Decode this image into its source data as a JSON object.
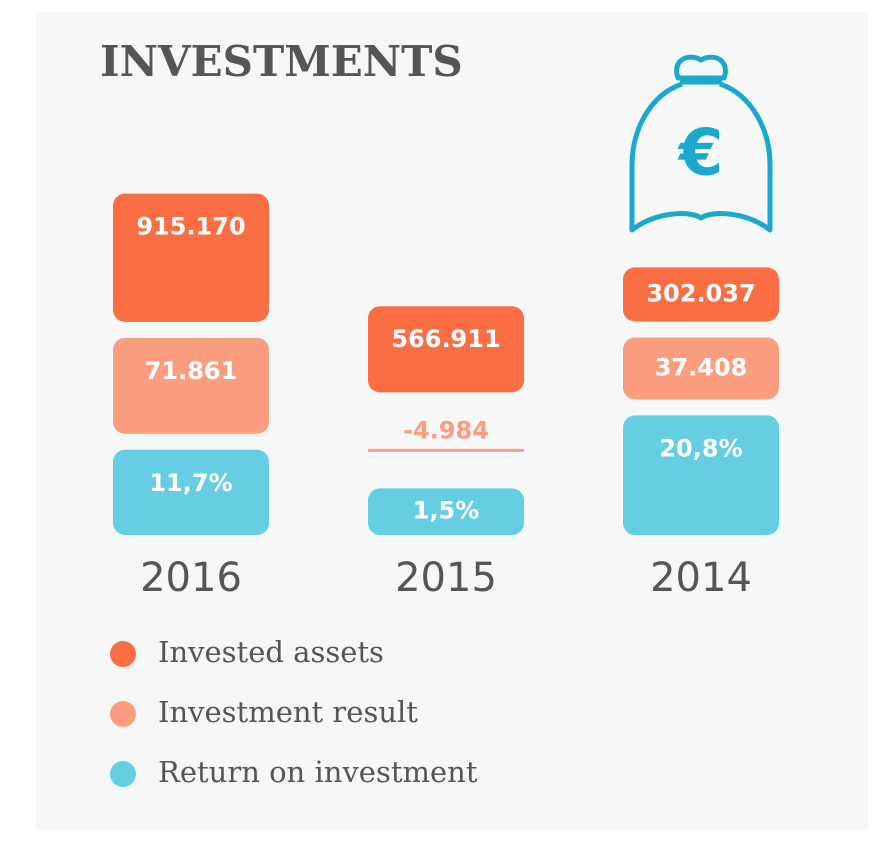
{
  "chart_data": {
    "type": "bar",
    "title": "INVESTMENTS",
    "categories": [
      "2016",
      "2015",
      "2014"
    ],
    "series": [
      {
        "name": "Invested assets",
        "color": "#fb6e44",
        "values": [
          915170,
          566911,
          302037
        ],
        "value_labels": [
          "915.170",
          "566.911",
          "302.037"
        ]
      },
      {
        "name": "Investment result",
        "color": "#fd9d80",
        "values": [
          71861,
          -4984,
          37408
        ],
        "value_labels": [
          "71.861",
          "-4.984",
          "37.408"
        ]
      },
      {
        "name": "Return on investment",
        "color": "#66cee3",
        "values": [
          11.7,
          1.5,
          20.8
        ],
        "value_labels": [
          "11,7%",
          "1,5%",
          "20,8%"
        ]
      }
    ]
  }
}
